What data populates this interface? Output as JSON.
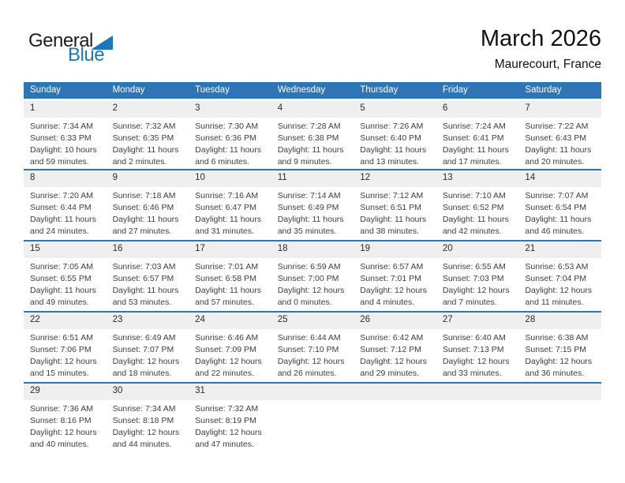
{
  "logo": {
    "part1": "General",
    "part2": "Blue"
  },
  "header": {
    "title": "March 2026",
    "subtitle": "Maurecourt, France"
  },
  "colors": {
    "header_blue": "#2e75b5",
    "separator_blue": "#2e75b6",
    "band_gray": "#efefef",
    "logo_blue": "#1b76bc",
    "body_text": "#3d3d3d"
  },
  "calendar": {
    "day_headers": [
      "Sunday",
      "Monday",
      "Tuesday",
      "Wednesday",
      "Thursday",
      "Friday",
      "Saturday"
    ],
    "weeks": [
      [
        {
          "day": "1",
          "lines": [
            "Sunrise: 7:34 AM",
            "Sunset: 6:33 PM",
            "Daylight: 10 hours",
            "and 59 minutes."
          ]
        },
        {
          "day": "2",
          "lines": [
            "Sunrise: 7:32 AM",
            "Sunset: 6:35 PM",
            "Daylight: 11 hours",
            "and 2 minutes."
          ]
        },
        {
          "day": "3",
          "lines": [
            "Sunrise: 7:30 AM",
            "Sunset: 6:36 PM",
            "Daylight: 11 hours",
            "and 6 minutes."
          ]
        },
        {
          "day": "4",
          "lines": [
            "Sunrise: 7:28 AM",
            "Sunset: 6:38 PM",
            "Daylight: 11 hours",
            "and 9 minutes."
          ]
        },
        {
          "day": "5",
          "lines": [
            "Sunrise: 7:26 AM",
            "Sunset: 6:40 PM",
            "Daylight: 11 hours",
            "and 13 minutes."
          ]
        },
        {
          "day": "6",
          "lines": [
            "Sunrise: 7:24 AM",
            "Sunset: 6:41 PM",
            "Daylight: 11 hours",
            "and 17 minutes."
          ]
        },
        {
          "day": "7",
          "lines": [
            "Sunrise: 7:22 AM",
            "Sunset: 6:43 PM",
            "Daylight: 11 hours",
            "and 20 minutes."
          ]
        }
      ],
      [
        {
          "day": "8",
          "lines": [
            "Sunrise: 7:20 AM",
            "Sunset: 6:44 PM",
            "Daylight: 11 hours",
            "and 24 minutes."
          ]
        },
        {
          "day": "9",
          "lines": [
            "Sunrise: 7:18 AM",
            "Sunset: 6:46 PM",
            "Daylight: 11 hours",
            "and 27 minutes."
          ]
        },
        {
          "day": "10",
          "lines": [
            "Sunrise: 7:16 AM",
            "Sunset: 6:47 PM",
            "Daylight: 11 hours",
            "and 31 minutes."
          ]
        },
        {
          "day": "11",
          "lines": [
            "Sunrise: 7:14 AM",
            "Sunset: 6:49 PM",
            "Daylight: 11 hours",
            "and 35 minutes."
          ]
        },
        {
          "day": "12",
          "lines": [
            "Sunrise: 7:12 AM",
            "Sunset: 6:51 PM",
            "Daylight: 11 hours",
            "and 38 minutes."
          ]
        },
        {
          "day": "13",
          "lines": [
            "Sunrise: 7:10 AM",
            "Sunset: 6:52 PM",
            "Daylight: 11 hours",
            "and 42 minutes."
          ]
        },
        {
          "day": "14",
          "lines": [
            "Sunrise: 7:07 AM",
            "Sunset: 6:54 PM",
            "Daylight: 11 hours",
            "and 46 minutes."
          ]
        }
      ],
      [
        {
          "day": "15",
          "lines": [
            "Sunrise: 7:05 AM",
            "Sunset: 6:55 PM",
            "Daylight: 11 hours",
            "and 49 minutes."
          ]
        },
        {
          "day": "16",
          "lines": [
            "Sunrise: 7:03 AM",
            "Sunset: 6:57 PM",
            "Daylight: 11 hours",
            "and 53 minutes."
          ]
        },
        {
          "day": "17",
          "lines": [
            "Sunrise: 7:01 AM",
            "Sunset: 6:58 PM",
            "Daylight: 11 hours",
            "and 57 minutes."
          ]
        },
        {
          "day": "18",
          "lines": [
            "Sunrise: 6:59 AM",
            "Sunset: 7:00 PM",
            "Daylight: 12 hours",
            "and 0 minutes."
          ]
        },
        {
          "day": "19",
          "lines": [
            "Sunrise: 6:57 AM",
            "Sunset: 7:01 PM",
            "Daylight: 12 hours",
            "and 4 minutes."
          ]
        },
        {
          "day": "20",
          "lines": [
            "Sunrise: 6:55 AM",
            "Sunset: 7:03 PM",
            "Daylight: 12 hours",
            "and 7 minutes."
          ]
        },
        {
          "day": "21",
          "lines": [
            "Sunrise: 6:53 AM",
            "Sunset: 7:04 PM",
            "Daylight: 12 hours",
            "and 11 minutes."
          ]
        }
      ],
      [
        {
          "day": "22",
          "lines": [
            "Sunrise: 6:51 AM",
            "Sunset: 7:06 PM",
            "Daylight: 12 hours",
            "and 15 minutes."
          ]
        },
        {
          "day": "23",
          "lines": [
            "Sunrise: 6:49 AM",
            "Sunset: 7:07 PM",
            "Daylight: 12 hours",
            "and 18 minutes."
          ]
        },
        {
          "day": "24",
          "lines": [
            "Sunrise: 6:46 AM",
            "Sunset: 7:09 PM",
            "Daylight: 12 hours",
            "and 22 minutes."
          ]
        },
        {
          "day": "25",
          "lines": [
            "Sunrise: 6:44 AM",
            "Sunset: 7:10 PM",
            "Daylight: 12 hours",
            "and 26 minutes."
          ]
        },
        {
          "day": "26",
          "lines": [
            "Sunrise: 6:42 AM",
            "Sunset: 7:12 PM",
            "Daylight: 12 hours",
            "and 29 minutes."
          ]
        },
        {
          "day": "27",
          "lines": [
            "Sunrise: 6:40 AM",
            "Sunset: 7:13 PM",
            "Daylight: 12 hours",
            "and 33 minutes."
          ]
        },
        {
          "day": "28",
          "lines": [
            "Sunrise: 6:38 AM",
            "Sunset: 7:15 PM",
            "Daylight: 12 hours",
            "and 36 minutes."
          ]
        }
      ],
      [
        {
          "day": "29",
          "lines": [
            "Sunrise: 7:36 AM",
            "Sunset: 8:16 PM",
            "Daylight: 12 hours",
            "and 40 minutes."
          ]
        },
        {
          "day": "30",
          "lines": [
            "Sunrise: 7:34 AM",
            "Sunset: 8:18 PM",
            "Daylight: 12 hours",
            "and 44 minutes."
          ]
        },
        {
          "day": "31",
          "lines": [
            "Sunrise: 7:32 AM",
            "Sunset: 8:19 PM",
            "Daylight: 12 hours",
            "and 47 minutes."
          ]
        },
        null,
        null,
        null,
        null
      ]
    ]
  }
}
